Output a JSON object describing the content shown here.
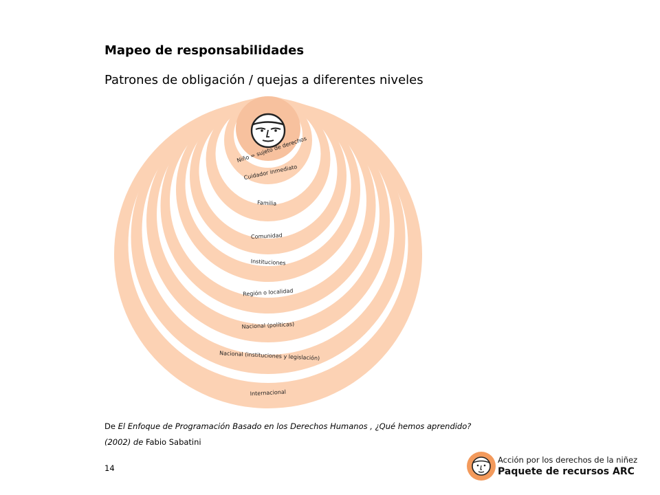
{
  "page": {
    "title": "Mapeo de responsabilidades",
    "subtitle": "Patrones de obligación / quejas a diferentes niveles",
    "page_number": "14"
  },
  "diagram": {
    "ring_color": "#fcd2b4",
    "center_color": "#f7c19e",
    "face_icon": "child-face-icon",
    "rings": [
      {
        "label": "Niño = sujeto de derechos"
      },
      {
        "label": "Cuidador inmediato"
      },
      {
        "label": "Familia"
      },
      {
        "label": "Comunidad"
      },
      {
        "label": "Instituciones"
      },
      {
        "label": "Región o localidad"
      },
      {
        "label": "Nacional (políticas)"
      },
      {
        "label": "Nacional (instituciones y legislación)"
      },
      {
        "label": "Internacional"
      }
    ]
  },
  "caption": {
    "prefix": "De ",
    "work_title": "El Enfoque de Programación Basado en los Derechos Humanos , ¿Qué hemos aprendido?",
    "year": "(2002)",
    "by": " de ",
    "author": "Fabio Sabatini"
  },
  "logo": {
    "line1": "Acción por los derechos de la niñez",
    "line2": "Paquete de recursos ARC",
    "icon": "face-logo-icon",
    "color": "#f39a5c"
  }
}
